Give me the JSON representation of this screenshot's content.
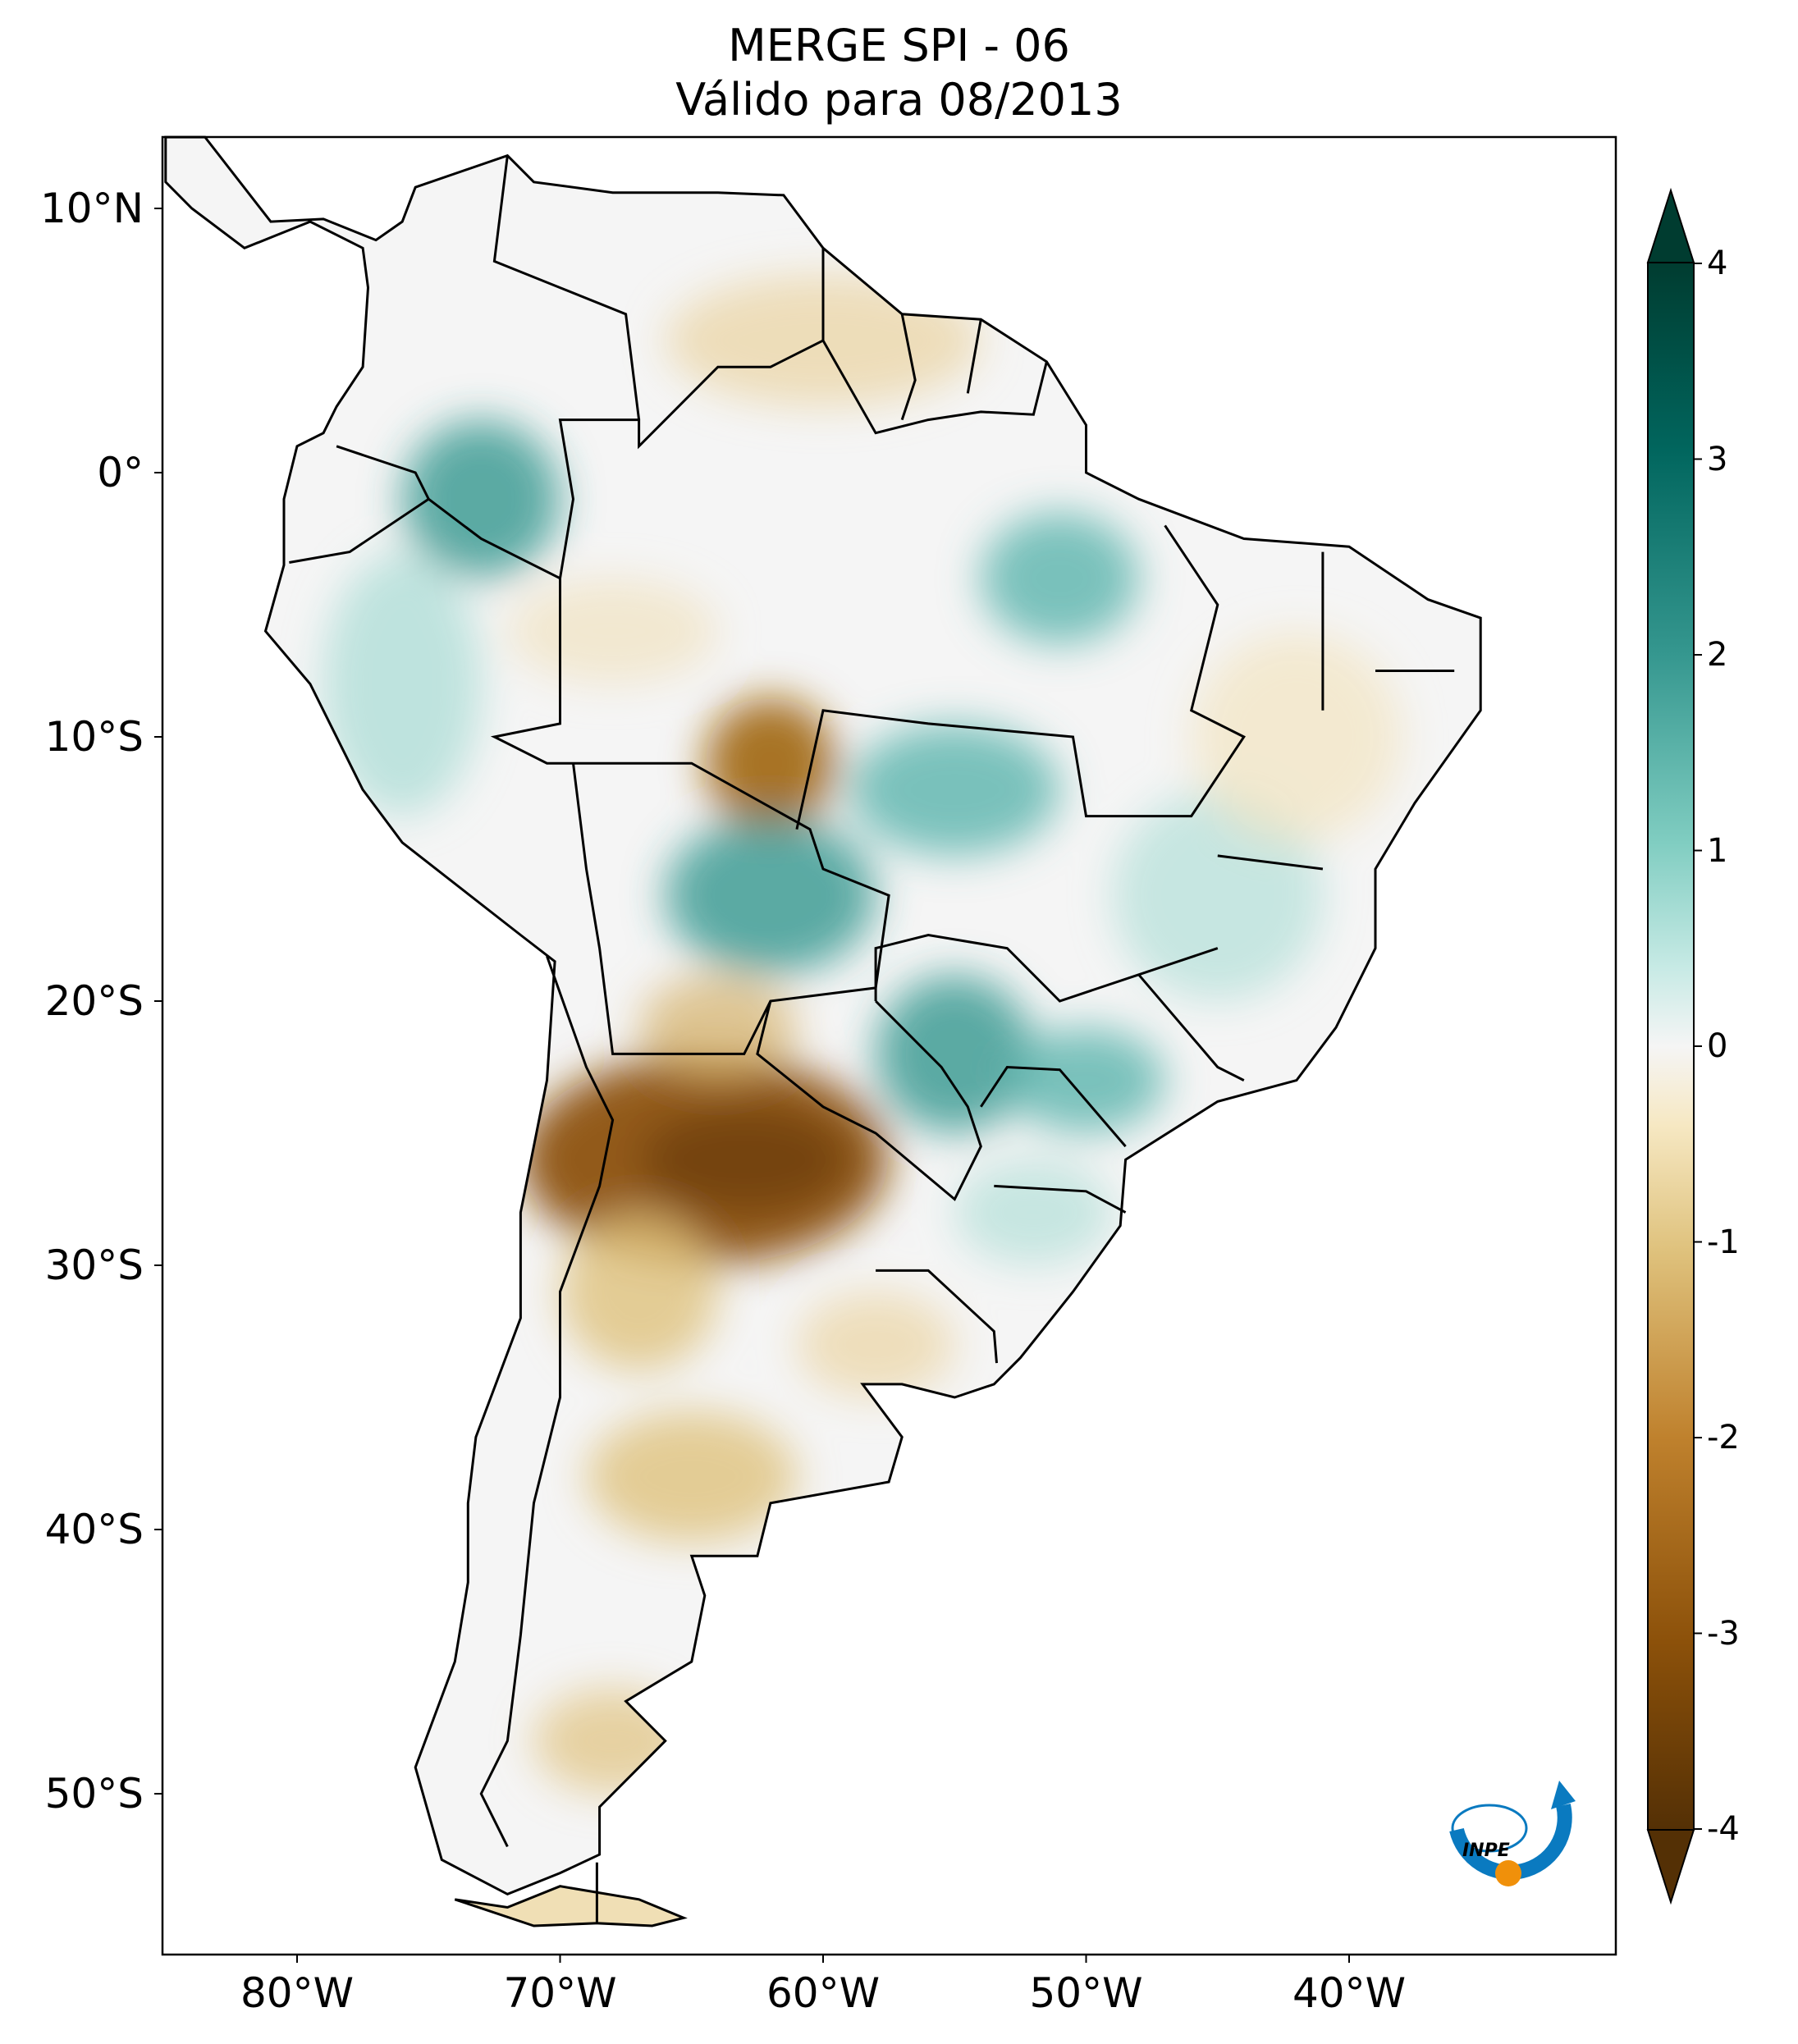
{
  "title": {
    "line1": "MERGE   SPI - 06",
    "line2": "Válido para 08/2013"
  },
  "map": {
    "projection": "PlateCarree",
    "extent": {
      "lon": [
        -85,
        -30
      ],
      "lat": [
        -56,
        12.7
      ]
    },
    "lat_labels": [
      "10°N",
      "0°",
      "10°S",
      "20°S",
      "30°S",
      "40°S",
      "50°S"
    ],
    "lat_values": [
      10,
      0,
      -10,
      -20,
      -30,
      -40,
      -50
    ],
    "lon_labels": [
      "80°W",
      "70°W",
      "60°W",
      "50°W",
      "40°W"
    ],
    "lon_values": [
      -80,
      -70,
      -60,
      -50,
      -40
    ],
    "variable": "SPI-6",
    "dry_regions": [
      "Paraguay / northern Argentina (strong dry, below -2)",
      "Rondônia/Bolivia border",
      "Central Argentina / Patagonia (moderate dry)"
    ],
    "wet_regions": [
      "Western Amazon",
      "Central Brazil / Mato Grosso",
      "Mato Grosso do Sul / Paraná / São Paulo",
      "Pará"
    ]
  },
  "colorbar": {
    "colormap": "BrBG",
    "ticks": [
      "4",
      "3",
      "2",
      "1",
      "0",
      "-1",
      "-2",
      "-3",
      "-4"
    ],
    "tick_values": [
      4,
      3,
      2,
      1,
      0,
      -1,
      -2,
      -3,
      -4
    ],
    "range": [
      -4,
      4
    ],
    "extend": "both",
    "colors": {
      "min": "#543005",
      "mid": "#f5f5f5",
      "max": "#003c30"
    }
  },
  "logo": {
    "text": "INPE",
    "colors": {
      "arc": "#0a7ac0",
      "dot": "#f0900a"
    }
  }
}
